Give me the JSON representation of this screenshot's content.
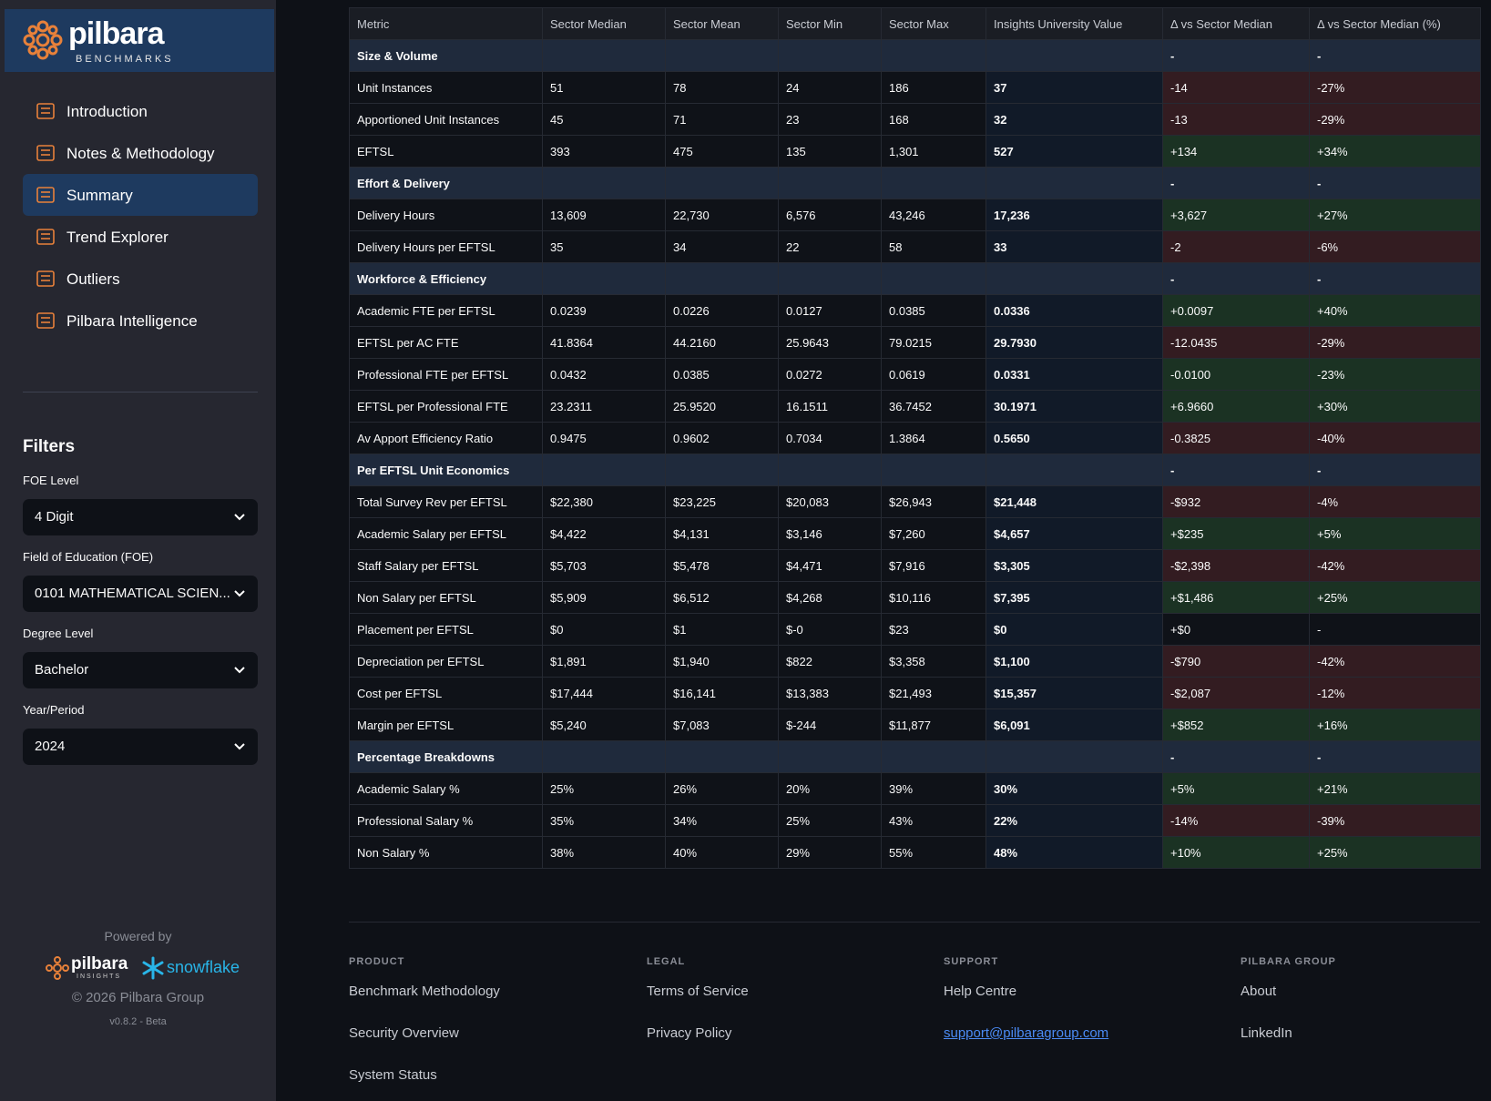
{
  "brand": {
    "name": "pilbara",
    "tagline": "BENCHMARKS"
  },
  "nav": [
    "Introduction",
    "Notes & Methodology",
    "Summary",
    "Trend Explorer",
    "Outliers",
    "Pilbara Intelligence"
  ],
  "filters": {
    "title": "Filters",
    "fields": [
      {
        "label": "FOE Level",
        "value": "4 Digit"
      },
      {
        "label": "Field of Education (FOE)",
        "value": "0101 MATHEMATICAL SCIEN..."
      },
      {
        "label": "Degree Level",
        "value": "Bachelor"
      },
      {
        "label": "Year/Period",
        "value": "2024"
      }
    ]
  },
  "sidebar_footer": {
    "powered_by": "Powered by",
    "logo_a": "pilbara",
    "logo_a_sub": "INSIGHTS",
    "logo_b": "snowflake",
    "copyright": "© 2026 Pilbara Group",
    "version": "v0.8.2 - Beta"
  },
  "table": {
    "headers": [
      "Metric",
      "Sector Median",
      "Sector Mean",
      "Sector Min",
      "Sector Max",
      "Insights University Value",
      "Δ vs Sector Median",
      "Δ vs Sector Median (%)"
    ],
    "sections": [
      {
        "title": "Size & Volume",
        "delta": "-",
        "delta_pct": "-",
        "rows": [
          {
            "tone": "red",
            "cells": [
              "Unit Instances",
              "51",
              "78",
              "24",
              "186",
              "37",
              "-14",
              "-27%"
            ]
          },
          {
            "tone": "red",
            "cells": [
              "Apportioned Unit Instances",
              "45",
              "71",
              "23",
              "168",
              "32",
              "-13",
              "-29%"
            ]
          },
          {
            "tone": "green",
            "cells": [
              "EFTSL",
              "393",
              "475",
              "135",
              "1,301",
              "527",
              "+134",
              "+34%"
            ]
          }
        ]
      },
      {
        "title": "Effort & Delivery",
        "delta": "-",
        "delta_pct": "-",
        "rows": [
          {
            "tone": "green",
            "cells": [
              "Delivery Hours",
              "13,609",
              "22,730",
              "6,576",
              "43,246",
              "17,236",
              "+3,627",
              "+27%"
            ]
          },
          {
            "tone": "red",
            "cells": [
              "Delivery Hours per EFTSL",
              "35",
              "34",
              "22",
              "58",
              "33",
              "-2",
              "-6%"
            ]
          }
        ]
      },
      {
        "title": "Workforce & Efficiency",
        "delta": "-",
        "delta_pct": "-",
        "rows": [
          {
            "tone": "green",
            "cells": [
              "Academic FTE per EFTSL",
              "0.0239",
              "0.0226",
              "0.0127",
              "0.0385",
              "0.0336",
              "+0.0097",
              "+40%"
            ]
          },
          {
            "tone": "red",
            "cells": [
              "EFTSL per AC FTE",
              "41.8364",
              "44.2160",
              "25.9643",
              "79.0215",
              "29.7930",
              "-12.0435",
              "-29%"
            ]
          },
          {
            "tone": "green",
            "cells": [
              "Professional FTE per EFTSL",
              "0.0432",
              "0.0385",
              "0.0272",
              "0.0619",
              "0.0331",
              "-0.0100",
              "-23%"
            ]
          },
          {
            "tone": "green",
            "cells": [
              "EFTSL per Professional FTE",
              "23.2311",
              "25.9520",
              "16.1511",
              "36.7452",
              "30.1971",
              "+6.9660",
              "+30%"
            ]
          },
          {
            "tone": "red",
            "cells": [
              "Av Apport Efficiency Ratio",
              "0.9475",
              "0.9602",
              "0.7034",
              "1.3864",
              "0.5650",
              "-0.3825",
              "-40%"
            ]
          }
        ]
      },
      {
        "title": "Per EFTSL Unit Economics",
        "delta": "-",
        "delta_pct": "-",
        "rows": [
          {
            "tone": "red",
            "cells": [
              "Total Survey Rev per EFTSL",
              "$22,380",
              "$23,225",
              "$20,083",
              "$26,943",
              "$21,448",
              "-$932",
              "-4%"
            ]
          },
          {
            "tone": "green",
            "cells": [
              "Academic Salary per EFTSL",
              "$4,422",
              "$4,131",
              "$3,146",
              "$7,260",
              "$4,657",
              "+$235",
              "+5%"
            ]
          },
          {
            "tone": "red",
            "cells": [
              "Staff Salary per EFTSL",
              "$5,703",
              "$5,478",
              "$4,471",
              "$7,916",
              "$3,305",
              "-$2,398",
              "-42%"
            ]
          },
          {
            "tone": "green",
            "cells": [
              "Non Salary per EFTSL",
              "$5,909",
              "$6,512",
              "$4,268",
              "$10,116",
              "$7,395",
              "+$1,486",
              "+25%"
            ]
          },
          {
            "tone": "none",
            "cells": [
              "Placement per EFTSL",
              "$0",
              "$1",
              "$-0",
              "$23",
              "$0",
              "+$0",
              "-"
            ]
          },
          {
            "tone": "red",
            "cells": [
              "Depreciation per EFTSL",
              "$1,891",
              "$1,940",
              "$822",
              "$3,358",
              "$1,100",
              "-$790",
              "-42%"
            ]
          },
          {
            "tone": "red",
            "cells": [
              "Cost per EFTSL",
              "$17,444",
              "$16,141",
              "$13,383",
              "$21,493",
              "$15,357",
              "-$2,087",
              "-12%"
            ]
          },
          {
            "tone": "green",
            "cells": [
              "Margin per EFTSL",
              "$5,240",
              "$7,083",
              "$-244",
              "$11,877",
              "$6,091",
              "+$852",
              "+16%"
            ]
          }
        ]
      },
      {
        "title": "Percentage Breakdowns",
        "delta": "-",
        "delta_pct": "-",
        "rows": [
          {
            "tone": "green",
            "cells": [
              "Academic Salary %",
              "25%",
              "26%",
              "20%",
              "39%",
              "30%",
              "+5%",
              "+21%"
            ]
          },
          {
            "tone": "red",
            "cells": [
              "Professional Salary %",
              "35%",
              "34%",
              "25%",
              "43%",
              "22%",
              "-14%",
              "-39%"
            ]
          },
          {
            "tone": "green",
            "cells": [
              "Non Salary %",
              "38%",
              "40%",
              "29%",
              "55%",
              "48%",
              "+10%",
              "+25%"
            ]
          }
        ]
      }
    ]
  },
  "footer": [
    {
      "heading": "PRODUCT",
      "links": [
        "Benchmark Methodology",
        "Security Overview",
        "System Status"
      ]
    },
    {
      "heading": "LEGAL",
      "links": [
        "Terms of Service",
        "Privacy Policy"
      ]
    },
    {
      "heading": "SUPPORT",
      "links": [
        "Help Centre",
        "support@pilbaragroup.com"
      ]
    },
    {
      "heading": "PILBARA GROUP",
      "links": [
        "About",
        "LinkedIn"
      ]
    }
  ]
}
